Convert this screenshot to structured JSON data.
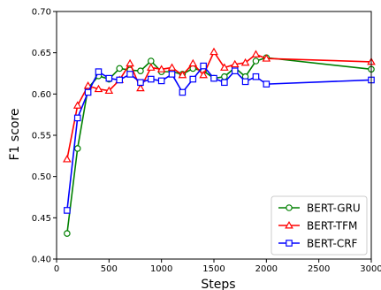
{
  "chart_data": {
    "type": "line",
    "title": "",
    "xlabel": "Steps",
    "ylabel": "F1 score",
    "xlim": [
      0,
      3000
    ],
    "ylim": [
      0.4,
      0.7
    ],
    "xticks": [
      0,
      500,
      1000,
      1500,
      2000,
      2500,
      3000
    ],
    "yticks": [
      0.4,
      0.45,
      0.5,
      0.55,
      0.6,
      0.65,
      0.7
    ],
    "xtick_labels": [
      "0",
      "500",
      "1000",
      "1500",
      "2000",
      "2500",
      "3000"
    ],
    "ytick_labels": [
      "0.40",
      "0.45",
      "0.50",
      "0.55",
      "0.60",
      "0.65",
      "0.70"
    ],
    "grid": false,
    "legend_position": "lower-right",
    "series": [
      {
        "name": "BERT-GRU",
        "color": "#008000",
        "marker": "circle",
        "x": [
          100,
          200,
          300,
          400,
          500,
          600,
          700,
          800,
          900,
          1000,
          1100,
          1200,
          1300,
          1400,
          1500,
          1600,
          1700,
          1800,
          1900,
          2000,
          3000
        ],
        "y": [
          0.431,
          0.534,
          0.607,
          0.622,
          0.618,
          0.631,
          0.629,
          0.628,
          0.64,
          0.627,
          0.627,
          0.624,
          0.631,
          0.628,
          0.619,
          0.621,
          0.632,
          0.621,
          0.64,
          0.644,
          0.63
        ]
      },
      {
        "name": "BERT-TFM",
        "color": "#ff0000",
        "marker": "triangle",
        "x": [
          100,
          200,
          300,
          400,
          500,
          600,
          700,
          800,
          900,
          1000,
          1100,
          1200,
          1300,
          1400,
          1500,
          1600,
          1700,
          1800,
          1900,
          2000,
          3000
        ],
        "y": [
          0.521,
          0.586,
          0.61,
          0.606,
          0.604,
          0.617,
          0.637,
          0.607,
          0.632,
          0.63,
          0.632,
          0.623,
          0.637,
          0.623,
          0.651,
          0.632,
          0.636,
          0.638,
          0.648,
          0.643,
          0.639
        ]
      },
      {
        "name": "BERT-CRF",
        "color": "#0000ff",
        "marker": "square",
        "x": [
          100,
          200,
          300,
          400,
          500,
          600,
          700,
          800,
          900,
          1000,
          1100,
          1200,
          1300,
          1400,
          1500,
          1600,
          1700,
          1800,
          1900,
          2000,
          3000
        ],
        "y": [
          0.459,
          0.571,
          0.602,
          0.627,
          0.619,
          0.617,
          0.624,
          0.614,
          0.618,
          0.616,
          0.624,
          0.602,
          0.618,
          0.634,
          0.619,
          0.614,
          0.628,
          0.615,
          0.621,
          0.612,
          0.617
        ]
      }
    ]
  }
}
